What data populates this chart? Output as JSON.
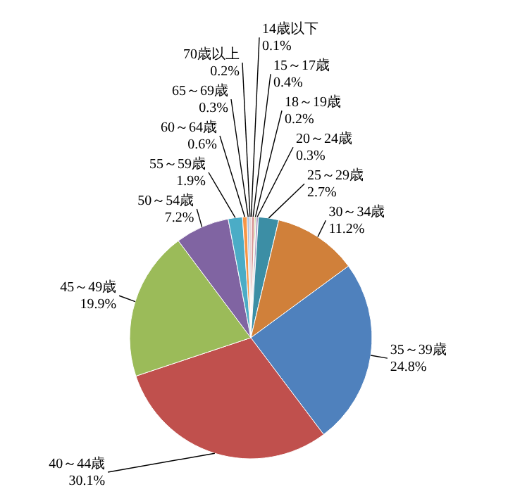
{
  "chart_data": {
    "type": "pie",
    "categories": [
      "14歳以下",
      "15～17歳",
      "18～19歳",
      "20～24歳",
      "25～29歳",
      "30～34歳",
      "35～39歳",
      "40～44歳",
      "45～49歳",
      "50～54歳",
      "55～59歳",
      "60～64歳",
      "65～69歳",
      "70歳以上"
    ],
    "values": [
      0.1,
      0.4,
      0.2,
      0.3,
      2.7,
      11.2,
      24.8,
      30.1,
      19.9,
      7.2,
      1.9,
      0.6,
      0.3,
      0.2
    ],
    "colors": [
      "#b9cde5",
      "#d99694",
      "#c3d69b",
      "#b3a2c7",
      "#3c8ea5",
      "#d0803a",
      "#4f81bd",
      "#c0504d",
      "#9bbb59",
      "#8064a2",
      "#4bacc6",
      "#f79646",
      "#a7c0de",
      "#c9a8a8"
    ],
    "value_labels": [
      "0.1%",
      "0.4%",
      "0.2%",
      "0.3%",
      "2.7%",
      "11.2%",
      "24.8%",
      "30.1%",
      "19.9%",
      "7.2%",
      "1.9%",
      "0.6%",
      "0.3%",
      "0.2%"
    ]
  }
}
